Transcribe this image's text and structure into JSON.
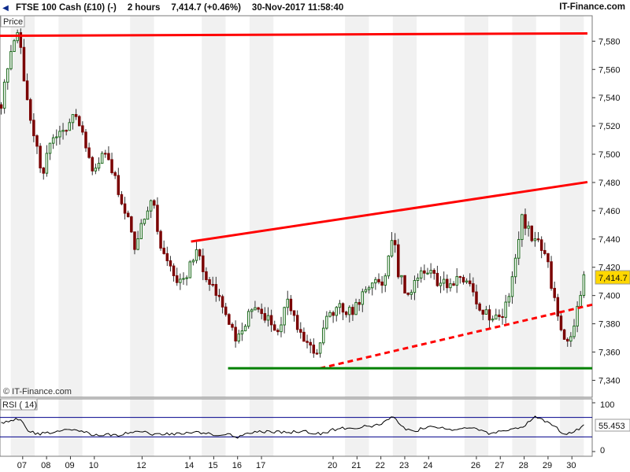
{
  "header": {
    "instrument": "FTSE 100 Cash (£10) (-)",
    "interval": "2 hours",
    "last_price": "7,414.7 (+0.46%)",
    "datetime": "30-Nov-2017 11:58:40",
    "brand": "IT-Finance.com"
  },
  "main_panel": {
    "label": "Price",
    "watermark": "© IT-Finance.com",
    "current_price_tag": "7,414.7"
  },
  "rsi_panel": {
    "label": "RSI ( 14)",
    "current_value_tag": "55.453",
    "level_top": "100",
    "level_bottom": "0"
  },
  "colors": {
    "up_candle": "#1d6b1d",
    "down_candle": "#7a0000",
    "resistance_line": "#ff0000",
    "support_line": "#008000",
    "rsi_line": "#000000",
    "rsi_band": "#00008b",
    "price_tag_bg": "#ffd700"
  },
  "chart_data": [
    {
      "type": "candlestick",
      "title": "FTSE 100 Cash (£10) (-)",
      "interval": "2 hours",
      "y_ticks": [
        "7,340",
        "7,360",
        "7,380",
        "7,400",
        "7,420",
        "7,440",
        "7,460",
        "7,480",
        "7,500",
        "7,520",
        "7,540",
        "7,560",
        "7,580"
      ],
      "y_tick_values": [
        7340,
        7360,
        7380,
        7400,
        7420,
        7440,
        7460,
        7480,
        7500,
        7520,
        7540,
        7560,
        7580
      ],
      "ylim": [
        7328,
        7598
      ],
      "x_tick_labels": [
        "07",
        "08",
        "09",
        "10",
        "12",
        "14",
        "15",
        "16",
        "17",
        "20",
        "21",
        "22",
        "23",
        "24",
        "26",
        "27",
        "28",
        "29",
        "30"
      ],
      "x_tick_days": [
        7,
        8,
        9,
        10,
        12,
        14,
        15,
        16,
        17,
        20,
        21,
        22,
        23,
        24,
        26,
        27,
        28,
        29,
        30
      ],
      "x_unit": "day of November 2017",
      "xlim": [
        6.05,
        30.85
      ],
      "grid": "alternating vertical bands",
      "path_points": [
        [
          6.1,
          7535
        ],
        [
          6.5,
          7575
        ],
        [
          6.8,
          7588
        ],
        [
          7.1,
          7548
        ],
        [
          7.5,
          7510
        ],
        [
          7.8,
          7485
        ],
        [
          8.2,
          7508
        ],
        [
          8.6,
          7515
        ],
        [
          9.0,
          7525
        ],
        [
          9.3,
          7528
        ],
        [
          9.6,
          7505
        ],
        [
          9.9,
          7488
        ],
        [
          10.3,
          7497
        ],
        [
          10.6,
          7498
        ],
        [
          11.0,
          7475
        ],
        [
          11.4,
          7455
        ],
        [
          11.7,
          7435
        ],
        [
          12.2,
          7462
        ],
        [
          12.5,
          7466
        ],
        [
          12.8,
          7430
        ],
        [
          13.2,
          7418
        ],
        [
          13.6,
          7408
        ],
        [
          14.0,
          7420
        ],
        [
          14.3,
          7435
        ],
        [
          14.6,
          7418
        ],
        [
          15.0,
          7405
        ],
        [
          15.4,
          7392
        ],
        [
          15.7,
          7375
        ],
        [
          16.0,
          7370
        ],
        [
          16.4,
          7385
        ],
        [
          16.7,
          7390
        ],
        [
          17.0,
          7388
        ],
        [
          17.3,
          7382
        ],
        [
          17.7,
          7375
        ],
        [
          18.1,
          7395
        ],
        [
          18.4,
          7383
        ],
        [
          18.7,
          7372
        ],
        [
          19.0,
          7368
        ],
        [
          19.3,
          7358
        ],
        [
          19.6,
          7380
        ],
        [
          20.0,
          7388
        ],
        [
          20.3,
          7392
        ],
        [
          20.6,
          7387
        ],
        [
          21.0,
          7393
        ],
        [
          21.3,
          7404
        ],
        [
          21.6,
          7412
        ],
        [
          22.0,
          7406
        ],
        [
          22.3,
          7422
        ],
        [
          22.5,
          7445
        ],
        [
          22.7,
          7418
        ],
        [
          23.0,
          7405
        ],
        [
          23.3,
          7402
        ],
        [
          23.6,
          7415
        ],
        [
          24.0,
          7418
        ],
        [
          24.4,
          7410
        ],
        [
          24.8,
          7406
        ],
        [
          25.2,
          7410
        ],
        [
          25.6,
          7413
        ],
        [
          25.9,
          7398
        ],
        [
          26.3,
          7388
        ],
        [
          26.7,
          7382
        ],
        [
          27.0,
          7385
        ],
        [
          27.3,
          7395
        ],
        [
          27.6,
          7420
        ],
        [
          27.9,
          7455
        ],
        [
          28.2,
          7445
        ],
        [
          28.6,
          7437
        ],
        [
          29.0,
          7420
        ],
        [
          29.3,
          7395
        ],
        [
          29.6,
          7370
        ],
        [
          29.9,
          7368
        ],
        [
          30.2,
          7390
        ],
        [
          30.5,
          7414.7
        ]
      ],
      "trendlines": [
        {
          "name": "resistance-top",
          "from": [
            6.05,
            7583.8
          ],
          "to": [
            30.65,
            7585.5
          ]
        },
        {
          "name": "resistance-rising",
          "from": [
            14.05,
            7438.2
          ],
          "to": [
            30.65,
            7480.3
          ]
        },
        {
          "name": "support-dashed",
          "from": [
            19.45,
            7348.5
          ],
          "to": [
            30.85,
            7393.5
          ]
        },
        {
          "name": "support-flat",
          "from": [
            15.6,
            7348.5
          ],
          "to": [
            30.85,
            7348.5
          ]
        }
      ]
    },
    {
      "type": "line",
      "title": "RSI ( 14)",
      "y_ticks": [
        "100",
        "0"
      ],
      "bands": [
        70,
        30
      ],
      "ylim": [
        0,
        100
      ],
      "current": 55.453,
      "x": [
        6.1,
        6.5,
        6.9,
        7.2,
        7.6,
        8.0,
        8.4,
        8.8,
        9.2,
        9.6,
        10.0,
        10.5,
        11.0,
        11.5,
        12.0,
        12.5,
        13.0,
        13.5,
        14.0,
        14.5,
        15.0,
        15.5,
        16.0,
        16.5,
        17.0,
        17.5,
        18.0,
        18.5,
        19.0,
        19.5,
        20.0,
        20.5,
        21.0,
        21.5,
        22.0,
        22.5,
        23.0,
        23.5,
        24.0,
        24.5,
        25.0,
        25.5,
        26.0,
        26.5,
        27.0,
        27.5,
        28.0,
        28.4,
        28.8,
        29.2,
        29.6,
        30.0,
        30.5
      ],
      "values": [
        60,
        62,
        68,
        44,
        35,
        38,
        40,
        43,
        45,
        40,
        33,
        35,
        32,
        40,
        43,
        35,
        37,
        36,
        40,
        38,
        35,
        36,
        30,
        37,
        41,
        40,
        39,
        41,
        40,
        36,
        45,
        48,
        49,
        52,
        55,
        73,
        46,
        43,
        52,
        49,
        45,
        50,
        45,
        38,
        40,
        47,
        51,
        72,
        64,
        55,
        38,
        36,
        55
      ]
    }
  ]
}
